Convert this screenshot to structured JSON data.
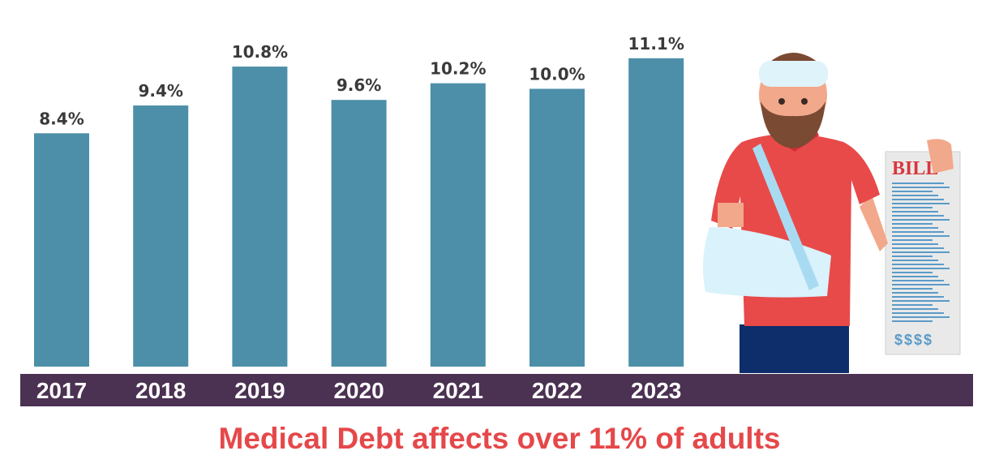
{
  "chart_data": {
    "type": "bar",
    "categories": [
      "2017",
      "2018",
      "2019",
      "2020",
      "2021",
      "2022",
      "2023"
    ],
    "values": [
      8.4,
      9.4,
      10.8,
      9.6,
      10.2,
      10.0,
      11.1
    ],
    "data_labels": [
      "8.4%",
      "9.4%",
      "10.8%",
      "9.6%",
      "10.2%",
      "10.0%",
      "11.1%"
    ],
    "title": "Medical Debt affects over 11% of adults",
    "xlabel": "",
    "ylabel": "",
    "ylim": [
      0,
      13.2
    ],
    "grid": false,
    "colors": {
      "bar": "#4d8fa8",
      "axis_band": "#4b3152",
      "title": "#e5484a"
    }
  },
  "illustration": {
    "bill_heading": "BILL",
    "bill_footer": "$$$$"
  }
}
